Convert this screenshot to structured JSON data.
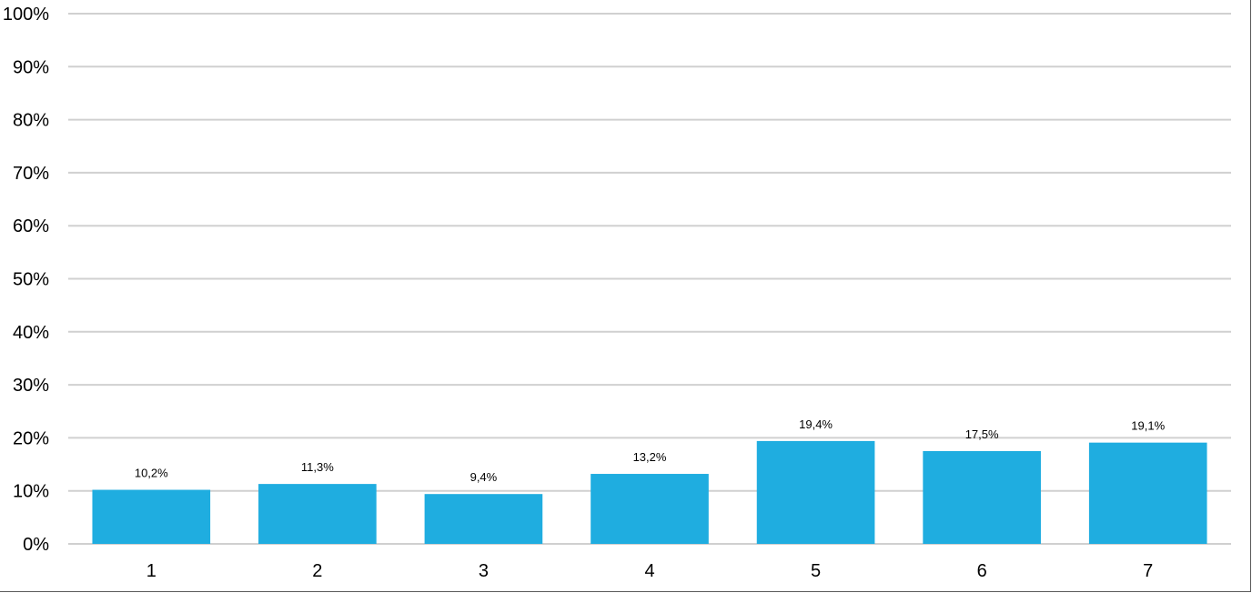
{
  "chart_data": {
    "type": "bar",
    "title": "",
    "xlabel": "",
    "ylabel": "",
    "categories": [
      "1",
      "2",
      "3",
      "4",
      "5",
      "6",
      "7"
    ],
    "values": [
      10.2,
      11.3,
      9.4,
      13.2,
      19.4,
      17.5,
      19.1
    ],
    "data_labels": [
      "10,2%",
      "11,3%",
      "9,4%",
      "13,2%",
      "19,4%",
      "17,5%",
      "19,1%"
    ],
    "ylim": [
      0,
      100
    ],
    "y_ticks": [
      0,
      10,
      20,
      30,
      40,
      50,
      60,
      70,
      80,
      90,
      100
    ],
    "y_tick_labels": [
      "0%",
      "10%",
      "20%",
      "30%",
      "40%",
      "50%",
      "60%",
      "70%",
      "80%",
      "90%",
      "100%"
    ],
    "grid": true,
    "legend": "none",
    "bar_color": "#1FADE0",
    "grid_color": "#D0D0D0"
  }
}
